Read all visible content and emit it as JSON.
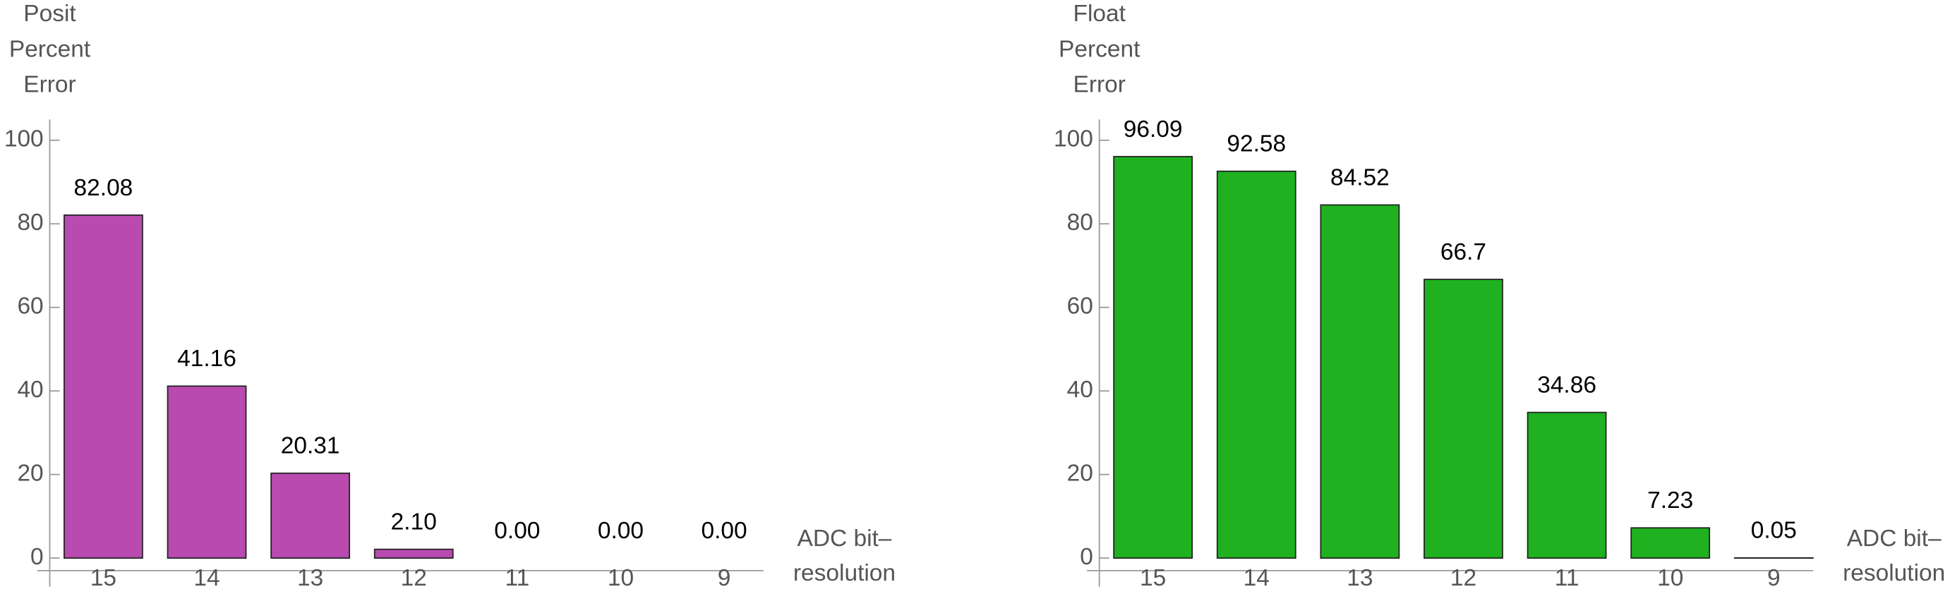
{
  "chart_data": [
    {
      "type": "bar",
      "y_label": "Posit Percent Error",
      "x_label": "ADC bit–resolution",
      "categories": [
        "15",
        "14",
        "13",
        "12",
        "11",
        "10",
        "9"
      ],
      "values": [
        82.08,
        41.16,
        20.31,
        2.1,
        0,
        0,
        0
      ],
      "value_labels": [
        "82.08",
        "41.16",
        "20.31",
        "2.10",
        "0.00",
        "0.00",
        "0.00"
      ],
      "color": "#b94aaf",
      "ylim": [
        -3,
        105
      ],
      "yticks": [
        0,
        20,
        40,
        60,
        80,
        100
      ]
    },
    {
      "type": "bar",
      "y_label": "Float Percent Error",
      "x_label": "ADC bit–resolution",
      "categories": [
        "15",
        "14",
        "13",
        "12",
        "11",
        "10",
        "9"
      ],
      "values": [
        96.09,
        92.58,
        84.52,
        66.7,
        34.86,
        7.23,
        0.05
      ],
      "color": "#1fb11f",
      "ylim": [
        -3,
        105
      ],
      "yticks": [
        0,
        20,
        40,
        60,
        80,
        100
      ]
    }
  ]
}
